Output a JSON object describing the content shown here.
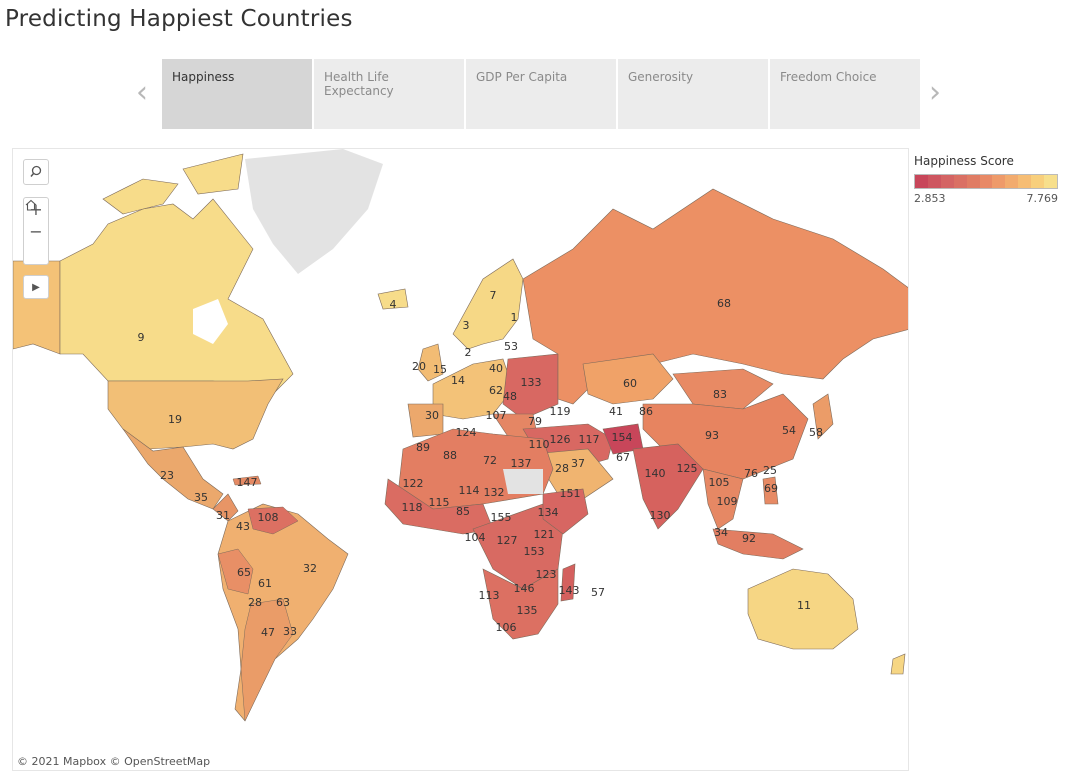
{
  "title": "Predicting Happiest Countries",
  "tabs": [
    {
      "label": "Happiness",
      "active": true
    },
    {
      "label": "Health Life Expectancy",
      "active": false
    },
    {
      "label": "GDP Per Capita",
      "active": false
    },
    {
      "label": "Generosity",
      "active": false
    },
    {
      "label": "Freedom Choice",
      "active": false
    }
  ],
  "icons": {
    "prev": "chevron-left-icon",
    "next": "chevron-right-icon",
    "search": "search-icon",
    "zoom_in": "plus-icon",
    "zoom_out": "minus-icon",
    "home": "home-icon",
    "pan": "play-icon"
  },
  "attribution": "© 2021 Mapbox  © OpenStreetMap",
  "legend": {
    "title": "Happiness Score",
    "min": "2.853",
    "max": "7.769",
    "colors": [
      "#c8465a",
      "#ce5660",
      "#d46464",
      "#da7064",
      "#e07c64",
      "#e88966",
      "#ee9a6a",
      "#f2ab6e",
      "#f6bd74",
      "#f8cf7c",
      "#f7df8c"
    ]
  },
  "rank_labels": [
    {
      "text": "9",
      "fill": "#f7dc8a"
    },
    {
      "text": "19",
      "fill": "#f2bf76"
    },
    {
      "text": "23",
      "fill": "#eba86c"
    },
    {
      "text": "147",
      "fill": "#d55f60"
    },
    {
      "text": "35",
      "fill": "#eca56a"
    },
    {
      "text": "31",
      "fill": "#eca56a"
    },
    {
      "text": "43",
      "fill": "#e99a68"
    },
    {
      "text": "108",
      "fill": "#dc7062"
    },
    {
      "text": "32",
      "fill": "#f0b070"
    },
    {
      "text": "65",
      "fill": "#e88f66"
    },
    {
      "text": "61",
      "fill": "#e99366"
    },
    {
      "text": "28",
      "fill": "#eca66a"
    },
    {
      "text": "63",
      "fill": "#e99266"
    },
    {
      "text": "47",
      "fill": "#ea9c68"
    },
    {
      "text": "33",
      "fill": "#eca66a"
    },
    {
      "text": "4",
      "fill": "#f7dc8a"
    },
    {
      "text": "7",
      "fill": "#f6d886"
    },
    {
      "text": "1",
      "fill": "#f8e08e"
    },
    {
      "text": "3",
      "fill": "#f7dc8a"
    },
    {
      "text": "2",
      "fill": "#f7dc8a"
    },
    {
      "text": "53",
      "fill": "#e99a68"
    },
    {
      "text": "20",
      "fill": "#f2bc74"
    },
    {
      "text": "15",
      "fill": "#f3c278"
    },
    {
      "text": "14",
      "fill": "#f3c278"
    },
    {
      "text": "40",
      "fill": "#eba06a"
    },
    {
      "text": "62",
      "fill": "#e99366"
    },
    {
      "text": "48",
      "fill": "#ea9868"
    },
    {
      "text": "133",
      "fill": "#d86862"
    },
    {
      "text": "30",
      "fill": "#eca86c"
    },
    {
      "text": "107",
      "fill": "#dd7262"
    },
    {
      "text": "79",
      "fill": "#e58664"
    },
    {
      "text": "119",
      "fill": "#da6c62"
    },
    {
      "text": "68",
      "fill": "#ec9064"
    },
    {
      "text": "60",
      "fill": "#f0a268"
    },
    {
      "text": "83",
      "fill": "#e88a64"
    },
    {
      "text": "41",
      "fill": "#eba06a"
    },
    {
      "text": "86",
      "fill": "#e68864"
    },
    {
      "text": "93",
      "fill": "#e78460"
    },
    {
      "text": "54",
      "fill": "#eba06a"
    },
    {
      "text": "58",
      "fill": "#eb9c68"
    },
    {
      "text": "124",
      "fill": "#d96a62"
    },
    {
      "text": "110",
      "fill": "#dc7062"
    },
    {
      "text": "126",
      "fill": "#d86862"
    },
    {
      "text": "117",
      "fill": "#da6c62"
    },
    {
      "text": "154",
      "fill": "#c8465a"
    },
    {
      "text": "67",
      "fill": "#e88e66"
    },
    {
      "text": "140",
      "fill": "#d6625e"
    },
    {
      "text": "125",
      "fill": "#d96a62"
    },
    {
      "text": "89",
      "fill": "#e27c62"
    },
    {
      "text": "88",
      "fill": "#e37e62"
    },
    {
      "text": "72",
      "fill": "#e68864"
    },
    {
      "text": "137",
      "fill": "#d76462"
    },
    {
      "text": "28",
      "fill": "#eeb070"
    },
    {
      "text": "37",
      "fill": "#f0b470"
    },
    {
      "text": "122",
      "fill": "#d96a62"
    },
    {
      "text": "114",
      "fill": "#db6e62"
    },
    {
      "text": "132",
      "fill": "#d86862"
    },
    {
      "text": "118",
      "fill": "#da6c62"
    },
    {
      "text": "115",
      "fill": "#db6e62"
    },
    {
      "text": "85",
      "fill": "#e38060"
    },
    {
      "text": "155",
      "fill": "#c8465a"
    },
    {
      "text": "134",
      "fill": "#d76662"
    },
    {
      "text": "151",
      "fill": "#cf545e"
    },
    {
      "text": "104",
      "fill": "#de7462"
    },
    {
      "text": "127",
      "fill": "#d86a62"
    },
    {
      "text": "121",
      "fill": "#d96c62"
    },
    {
      "text": "153",
      "fill": "#cb4c5c"
    },
    {
      "text": "123",
      "fill": "#d96a62"
    },
    {
      "text": "143",
      "fill": "#d4605e"
    },
    {
      "text": "57",
      "fill": "#ffffff"
    },
    {
      "text": "113",
      "fill": "#db6e62"
    },
    {
      "text": "146",
      "fill": "#d35e5e"
    },
    {
      "text": "135",
      "fill": "#d76662"
    },
    {
      "text": "106",
      "fill": "#dd7262"
    },
    {
      "text": "105",
      "fill": "#de7462"
    },
    {
      "text": "109",
      "fill": "#dc7062"
    },
    {
      "text": "76",
      "fill": "#e68864"
    },
    {
      "text": "25",
      "fill": "#efae6e"
    },
    {
      "text": "69",
      "fill": "#e78a64"
    },
    {
      "text": "130",
      "fill": "#d86862"
    },
    {
      "text": "34",
      "fill": "#eea86c"
    },
    {
      "text": "92",
      "fill": "#e27e62"
    },
    {
      "text": "11",
      "fill": "#f6d684"
    }
  ]
}
